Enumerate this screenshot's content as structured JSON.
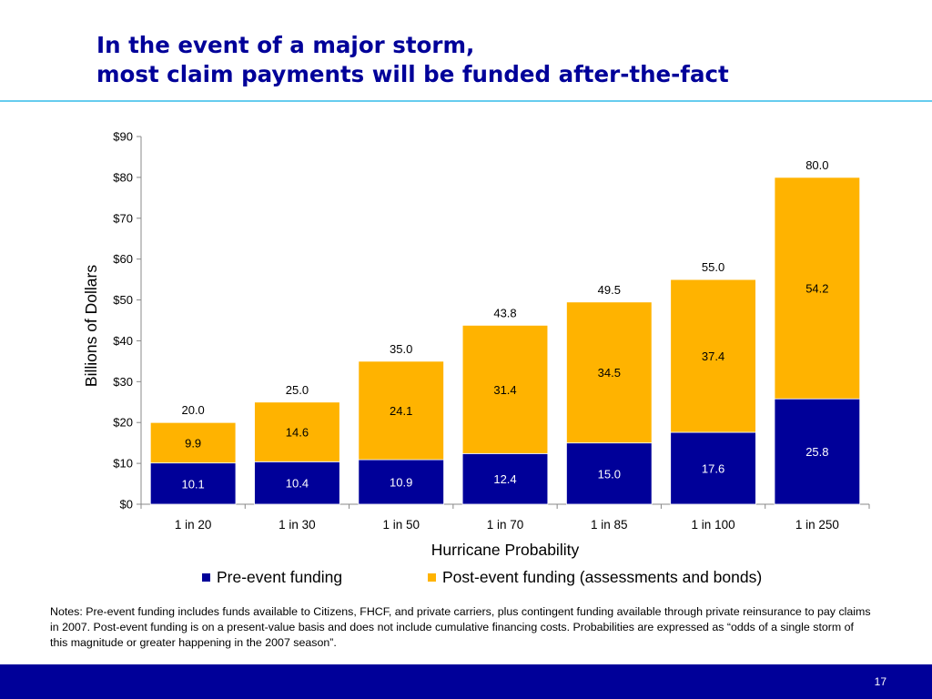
{
  "slide": {
    "title_line1": "In the event of a major storm,",
    "title_line2": "most claim payments will be funded after-the-fact",
    "notes": "Notes: Pre-event funding includes funds available to Citizens, FHCF, and private carriers, plus contingent funding available through private reinsurance to pay claims in 2007. Post-event funding is on a present-value basis and does not include cumulative financing costs. Probabilities are expressed as “odds of a single storm of this magnitude or greater happening in the 2007 season”.",
    "page_number": "17",
    "title_color": "#000099",
    "rule_color": "#66ccee",
    "footer_color": "#000099"
  },
  "chart_data": {
    "type": "bar",
    "stacked": true,
    "categories": [
      "1 in 20",
      "1 in 30",
      "1 in 50",
      "1 in 70",
      "1 in 85",
      "1 in 100",
      "1 in 250"
    ],
    "series": [
      {
        "name": "Pre-event funding",
        "color": "#000099",
        "values": [
          10.1,
          10.4,
          10.9,
          12.4,
          15.0,
          17.6,
          25.8
        ]
      },
      {
        "name": "Post-event funding (assessments and bonds)",
        "color": "#ffb300",
        "values": [
          9.9,
          14.6,
          24.1,
          31.4,
          34.5,
          37.4,
          54.2
        ]
      }
    ],
    "segment_labels": [
      [
        "10.1",
        "10.4",
        "10.9",
        "12.4",
        "15.0",
        "17.6",
        "25.8"
      ],
      [
        "9.9",
        "14.6",
        "24.1",
        "31.4",
        "34.5",
        "37.4",
        "54.2"
      ]
    ],
    "totals": [
      20.0,
      25.0,
      35.0,
      43.8,
      49.5,
      55.0,
      80.0
    ],
    "total_labels": [
      "20.0",
      "25.0",
      "35.0",
      "43.8",
      "49.5",
      "55.0",
      "80.0"
    ],
    "ylim": [
      0,
      90
    ],
    "y_ticks": [
      0,
      10,
      20,
      30,
      40,
      50,
      60,
      70,
      80,
      90
    ],
    "y_tick_labels": [
      "$0",
      "$10",
      "$20",
      "$30",
      "$40",
      "$50",
      "$60",
      "$70",
      "$80",
      "$90"
    ],
    "xlabel": "Hurricane Probability",
    "ylabel": "Billions of Dollars",
    "grid": false,
    "legend_position": "bottom"
  }
}
